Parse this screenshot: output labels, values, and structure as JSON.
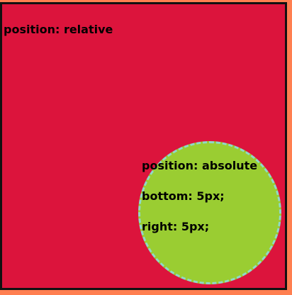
{
  "relative_box": {
    "label": "position: relative"
  },
  "absolute_circle": {
    "lines": [
      "position: absolute",
      "bottom: 5px;",
      "right: 5px;"
    ]
  },
  "colors": {
    "page_background": "#ff7f50",
    "relative_box_background": "#dc143c",
    "relative_box_border": "#111111",
    "circle_background": "#9acd32",
    "circle_border": "#8fd9c9"
  }
}
